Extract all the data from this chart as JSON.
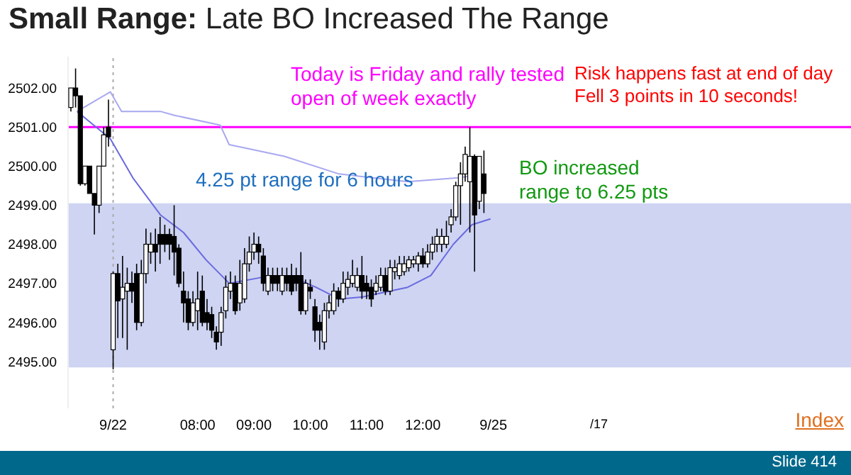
{
  "chart_data": {
    "type": "candlestick",
    "title": "Small Range: Late BO Increased The Range",
    "x": [
      5.75,
      5.833,
      5.917,
      6,
      6.083,
      6.167,
      6.25,
      6.333,
      6.417,
      6.5,
      6.583,
      6.667,
      6.75,
      6.833,
      6.917,
      7,
      7.083,
      7.167,
      7.25,
      7.333,
      7.417,
      7.5,
      7.583,
      7.667,
      7.75,
      7.833,
      7.917,
      8,
      8.083,
      8.167,
      8.25,
      8.333,
      8.417,
      8.5,
      8.583,
      8.667,
      8.75,
      8.833,
      8.917,
      9,
      9.083,
      9.167,
      9.25,
      9.333,
      9.417,
      9.5,
      9.583,
      9.667,
      9.75,
      9.833,
      9.917,
      10,
      10.083,
      10.167,
      10.25,
      10.333,
      10.417,
      10.5,
      10.583,
      10.667,
      10.75,
      10.833,
      10.917,
      11,
      11.083,
      11.167,
      11.25,
      11.333,
      11.417,
      11.5,
      11.583,
      11.667,
      11.75,
      11.833,
      11.917,
      12,
      12.083,
      12.167,
      12.25,
      12.333,
      12.417,
      12.5,
      12.583,
      12.667,
      12.75,
      12.833,
      12.917,
      13,
      13.083
    ],
    "ohlc": [
      [
        2501.5,
        2502,
        2501.4,
        2502
      ],
      [
        2502,
        2502.5,
        2501.5,
        2501.8
      ],
      [
        2501.8,
        2501.8,
        2499.5,
        2499.55
      ],
      [
        2499.55,
        2500,
        2499.5,
        2500
      ],
      [
        2500,
        2500,
        2499.3,
        2499.3
      ],
      [
        2499.3,
        2499.3,
        2498.25,
        2499
      ],
      [
        2499,
        2500,
        2498.8,
        2500
      ],
      [
        2500,
        2501,
        2500,
        2500.8
      ],
      [
        2501,
        2501.7,
        2500.5,
        2500.75
      ],
      [
        2495.3,
        2497.3,
        2494.8,
        2497.25
      ],
      [
        2497.25,
        2497.5,
        2495.6,
        2496.55
      ],
      [
        2496.6,
        2497.7,
        2495.6,
        2496.9
      ],
      [
        2496.8,
        2497.4,
        2495.3,
        2497
      ],
      [
        2497,
        2497.3,
        2496.5,
        2496.8
      ],
      [
        2497.25,
        2497.5,
        2495.8,
        2496
      ],
      [
        2496,
        2497.6,
        2495.9,
        2497.25
      ],
      [
        2497.25,
        2498.4,
        2497,
        2498
      ],
      [
        2497.8,
        2498.3,
        2497.5,
        2498
      ],
      [
        2498,
        2498.4,
        2497.3,
        2497.8
      ],
      [
        2498.25,
        2498.7,
        2497.5,
        2498
      ],
      [
        2498.25,
        2498.5,
        2497.8,
        2498
      ],
      [
        2498.25,
        2498.4,
        2497.6,
        2498
      ],
      [
        2498.2,
        2499,
        2497.2,
        2497.8
      ],
      [
        2497.9,
        2498,
        2496.9,
        2497
      ],
      [
        2496.8,
        2497.3,
        2496,
        2496.5
      ],
      [
        2496.6,
        2496.8,
        2495.8,
        2496
      ],
      [
        2496,
        2496.8,
        2495.9,
        2496.5
      ],
      [
        2496.3,
        2497.3,
        2495.8,
        2496.6
      ],
      [
        2496.8,
        2497.2,
        2495.9,
        2496
      ],
      [
        2496.25,
        2496.6,
        2495.8,
        2496
      ],
      [
        2496.2,
        2496.4,
        2495.6,
        2495.8
      ],
      [
        2495.75,
        2495.9,
        2495.3,
        2495.5
      ],
      [
        2495.75,
        2496.4,
        2495.4,
        2496.25
      ],
      [
        2496.3,
        2497.2,
        2496.1,
        2496.9
      ],
      [
        2496.8,
        2497.3,
        2496.6,
        2497
      ],
      [
        2497,
        2497.2,
        2496.2,
        2496.3
      ],
      [
        2496.5,
        2497.6,
        2496.3,
        2497
      ],
      [
        2496.6,
        2497.9,
        2496.5,
        2497.5
      ],
      [
        2497.5,
        2498.2,
        2497.3,
        2497.8
      ],
      [
        2497.8,
        2498.3,
        2497.6,
        2498
      ],
      [
        2498,
        2498.2,
        2497.5,
        2497.8
      ],
      [
        2497.7,
        2497.9,
        2496.8,
        2497
      ],
      [
        2496.8,
        2497.4,
        2496.7,
        2497.2
      ],
      [
        2497.2,
        2497.4,
        2496.8,
        2497
      ],
      [
        2497.2,
        2497.4,
        2496.8,
        2497
      ],
      [
        2496.8,
        2497.4,
        2496.7,
        2497.2
      ],
      [
        2497.2,
        2497.4,
        2496.8,
        2497
      ],
      [
        2497.2,
        2497.5,
        2496.7,
        2496.8
      ],
      [
        2497.2,
        2497.4,
        2496.8,
        2497
      ],
      [
        2497.2,
        2497.8,
        2496.2,
        2496.3
      ],
      [
        2496.3,
        2497.1,
        2496.2,
        2497
      ],
      [
        2496.9,
        2497.1,
        2496.6,
        2496.8
      ],
      [
        2496.4,
        2496.6,
        2495.5,
        2495.8
      ],
      [
        2496,
        2496.2,
        2495.3,
        2495.8
      ],
      [
        2495.5,
        2496.5,
        2495.3,
        2496.3
      ],
      [
        2496.3,
        2496.7,
        2496.1,
        2496.5
      ],
      [
        2496.3,
        2497,
        2496.2,
        2496.8
      ],
      [
        2496.8,
        2496.9,
        2496.4,
        2496.6
      ],
      [
        2496.6,
        2497.3,
        2496.5,
        2497
      ],
      [
        2496.9,
        2497.3,
        2496.7,
        2497.1
      ],
      [
        2497,
        2497.6,
        2496.9,
        2497.2
      ],
      [
        2496.9,
        2497.4,
        2496.8,
        2497.2
      ],
      [
        2497.2,
        2497.7,
        2496.6,
        2496.8
      ],
      [
        2497,
        2497.2,
        2496.6,
        2496.8
      ],
      [
        2496.9,
        2497.1,
        2496.4,
        2496.6
      ],
      [
        2496.8,
        2497.2,
        2496.7,
        2497
      ],
      [
        2496.9,
        2497.4,
        2496.8,
        2497.2
      ],
      [
        2497.2,
        2497.4,
        2496.7,
        2496.8
      ],
      [
        2496.8,
        2497.6,
        2496.7,
        2497.4
      ],
      [
        2497.3,
        2497.6,
        2497.1,
        2497.4
      ],
      [
        2497.2,
        2497.7,
        2497.1,
        2497.5
      ],
      [
        2497.3,
        2497.7,
        2497.2,
        2497.5
      ],
      [
        2497.4,
        2497.7,
        2497.3,
        2497.6
      ],
      [
        2497.5,
        2497.7,
        2497.4,
        2497.6
      ],
      [
        2497.5,
        2497.8,
        2497.3,
        2497.7
      ],
      [
        2497.7,
        2497.9,
        2497.4,
        2497.5
      ],
      [
        2497.5,
        2498,
        2497.4,
        2497.8
      ],
      [
        2497.8,
        2498.2,
        2497.6,
        2498
      ],
      [
        2498,
        2498.4,
        2497.8,
        2498.2
      ],
      [
        2498,
        2498.4,
        2497.8,
        2498.2
      ],
      [
        2498,
        2498.6,
        2497.9,
        2498.2
      ],
      [
        2498.5,
        2498.9,
        2498.3,
        2498.7
      ],
      [
        2498.7,
        2499.6,
        2498.6,
        2499.5
      ],
      [
        2499.5,
        2500.1,
        2498.5,
        2499.8
      ],
      [
        2499.8,
        2500.5,
        2499.6,
        2500.3
      ],
      [
        2499.6,
        2501,
        2498.3,
        2500.25
      ],
      [
        2500.25,
        2500.3,
        2497.3,
        2498.75
      ],
      [
        2499.1,
        2500.25,
        2498.9,
        2500.25
      ],
      [
        2499.8,
        2500.4,
        2498.8,
        2499.3
      ]
    ],
    "series": [
      {
        "type": "line",
        "color": "#a8a8f0",
        "x": [
          5.86,
          6.45,
          6.65,
          7.34,
          7.59,
          8.4,
          8.56,
          9.54,
          10.51,
          11.73,
          12.63,
          12.87
        ],
        "values": [
          2501.4,
          2501.9,
          2501.4,
          2501.4,
          2501.3,
          2501.05,
          2500.55,
          2500.25,
          2499.8,
          2499.6,
          2499.7,
          2499.75
        ]
      },
      {
        "type": "line",
        "color": "#6a6ae0",
        "x": [
          5.86,
          6.45,
          6.85,
          7.34,
          7.75,
          8.15,
          8.56,
          9.13,
          9.78,
          10.1,
          10.51,
          10.92,
          11.73,
          12.14,
          12.54,
          12.87,
          13.2
        ],
        "values": [
          2501.4,
          2500.7,
          2499.7,
          2498.75,
          2498.3,
          2497.6,
          2497,
          2497.15,
          2497.1,
          2496.9,
          2496.6,
          2496.65,
          2496.9,
          2497.2,
          2498,
          2498.5,
          2498.65
        ]
      }
    ],
    "xlim": [
      5.7,
      19.6
    ],
    "xticks": [
      {
        "value": 6.5,
        "label": "9/22"
      },
      {
        "value": 8,
        "label": "08:00"
      },
      {
        "value": 9,
        "label": "09:00"
      },
      {
        "value": 10,
        "label": "10:00"
      },
      {
        "value": 11,
        "label": "11:00"
      },
      {
        "value": 12,
        "label": "12:00"
      },
      {
        "value": 13.25,
        "label": "9/25"
      }
    ],
    "ylim": [
      2493.8,
      2502.8
    ],
    "yticks": [
      {
        "value": 2495,
        "label": "2495.00"
      },
      {
        "value": 2496,
        "label": "2496.00"
      },
      {
        "value": 2497,
        "label": "2497.00"
      },
      {
        "value": 2498,
        "label": "2498.00"
      },
      {
        "value": 2499,
        "label": "2499.00"
      },
      {
        "value": 2500,
        "label": "2500.00"
      },
      {
        "value": 2501,
        "label": "2501.00"
      },
      {
        "value": 2502,
        "label": "2502.00"
      }
    ],
    "ref_lines": [
      {
        "axis": "y",
        "value": 2501,
        "color": "#ff00ff"
      },
      {
        "axis": "x",
        "value": 6.5,
        "color": "#aaaaaa",
        "line_style": "dotted"
      }
    ],
    "bands": [
      {
        "axis": "y",
        "from": 2494.85,
        "to": 2499.05,
        "label": "4.25 pt range for 6 hours",
        "color": "#c5cdf0"
      }
    ],
    "annotations": [
      "Today is Friday and rally tested open of week exactly",
      "Risk happens fast at end of day Fell 3 points in 10 seconds!",
      "BO increased range to 6.25 pts",
      "Slide 414",
      "Index",
      "/17"
    ]
  }
}
